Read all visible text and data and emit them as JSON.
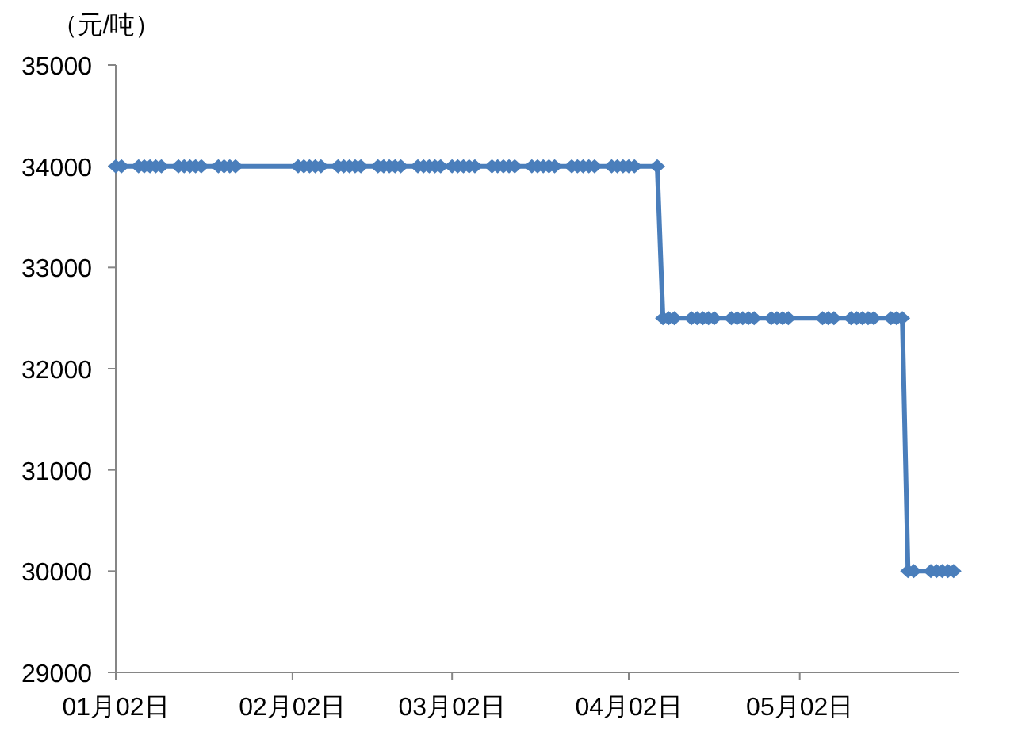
{
  "chart_data": {
    "type": "line",
    "ylabel": "（元/吨）",
    "x": [
      "--01-02",
      "--01-03",
      "--01-06",
      "--01-07",
      "--01-08",
      "--01-09",
      "--01-10",
      "--01-13",
      "--01-14",
      "--01-15",
      "--01-16",
      "--01-17",
      "--01-20",
      "--01-21",
      "--01-22",
      "--01-23",
      "--02-03",
      "--02-04",
      "--02-05",
      "--02-06",
      "--02-07",
      "--02-10",
      "--02-11",
      "--02-12",
      "--02-13",
      "--02-14",
      "--02-17",
      "--02-18",
      "--02-19",
      "--02-20",
      "--02-21",
      "--02-24",
      "--02-25",
      "--02-26",
      "--02-27",
      "--02-28",
      "--03-02",
      "--03-03",
      "--03-04",
      "--03-05",
      "--03-06",
      "--03-09",
      "--03-10",
      "--03-11",
      "--03-12",
      "--03-13",
      "--03-16",
      "--03-17",
      "--03-18",
      "--03-19",
      "--03-20",
      "--03-23",
      "--03-24",
      "--03-25",
      "--03-26",
      "--03-27",
      "--03-30",
      "--03-31",
      "--04-01",
      "--04-02",
      "--04-03",
      "--04-07",
      "--04-08",
      "--04-09",
      "--04-10",
      "--04-13",
      "--04-14",
      "--04-15",
      "--04-16",
      "--04-17",
      "--04-20",
      "--04-21",
      "--04-22",
      "--04-23",
      "--04-24",
      "--04-27",
      "--04-28",
      "--04-29",
      "--04-30",
      "--05-06",
      "--05-07",
      "--05-08",
      "--05-11",
      "--05-12",
      "--05-13",
      "--05-14",
      "--05-15",
      "--05-18",
      "--05-19",
      "--05-20",
      "--05-21",
      "--05-22",
      "--05-25",
      "--05-26",
      "--05-27",
      "--05-28",
      "--05-29"
    ],
    "series": [
      {
        "color": "#4a7ebb",
        "values": [
          34000,
          34000,
          34000,
          34000,
          34000,
          34000,
          34000,
          34000,
          34000,
          34000,
          34000,
          34000,
          34000,
          34000,
          34000,
          34000,
          34000,
          34000,
          34000,
          34000,
          34000,
          34000,
          34000,
          34000,
          34000,
          34000,
          34000,
          34000,
          34000,
          34000,
          34000,
          34000,
          34000,
          34000,
          34000,
          34000,
          34000,
          34000,
          34000,
          34000,
          34000,
          34000,
          34000,
          34000,
          34000,
          34000,
          34000,
          34000,
          34000,
          34000,
          34000,
          34000,
          34000,
          34000,
          34000,
          34000,
          34000,
          34000,
          34000,
          34000,
          34000,
          34000,
          32500,
          32500,
          32500,
          32500,
          32500,
          32500,
          32500,
          32500,
          32500,
          32500,
          32500,
          32500,
          32500,
          32500,
          32500,
          32500,
          32500,
          32500,
          32500,
          32500,
          32500,
          32500,
          32500,
          32500,
          32500,
          32500,
          32500,
          32500,
          30000,
          30000,
          30000,
          30000,
          30000,
          30000,
          30000
        ]
      }
    ],
    "xlim": [
      "--01-02",
      "--05-30"
    ],
    "xticks": [
      {
        "value": "--01-02",
        "label": "01月02日"
      },
      {
        "value": "--02-02",
        "label": "02月02日"
      },
      {
        "value": "--03-02",
        "label": "03月02日"
      },
      {
        "value": "--04-02",
        "label": "04月02日"
      },
      {
        "value": "--05-02",
        "label": "05月02日"
      }
    ],
    "ylim": [
      29000,
      35000
    ],
    "yticks": [
      29000,
      30000,
      31000,
      32000,
      33000,
      34000,
      35000
    ],
    "marker": "diamond",
    "line_style": "solid"
  }
}
